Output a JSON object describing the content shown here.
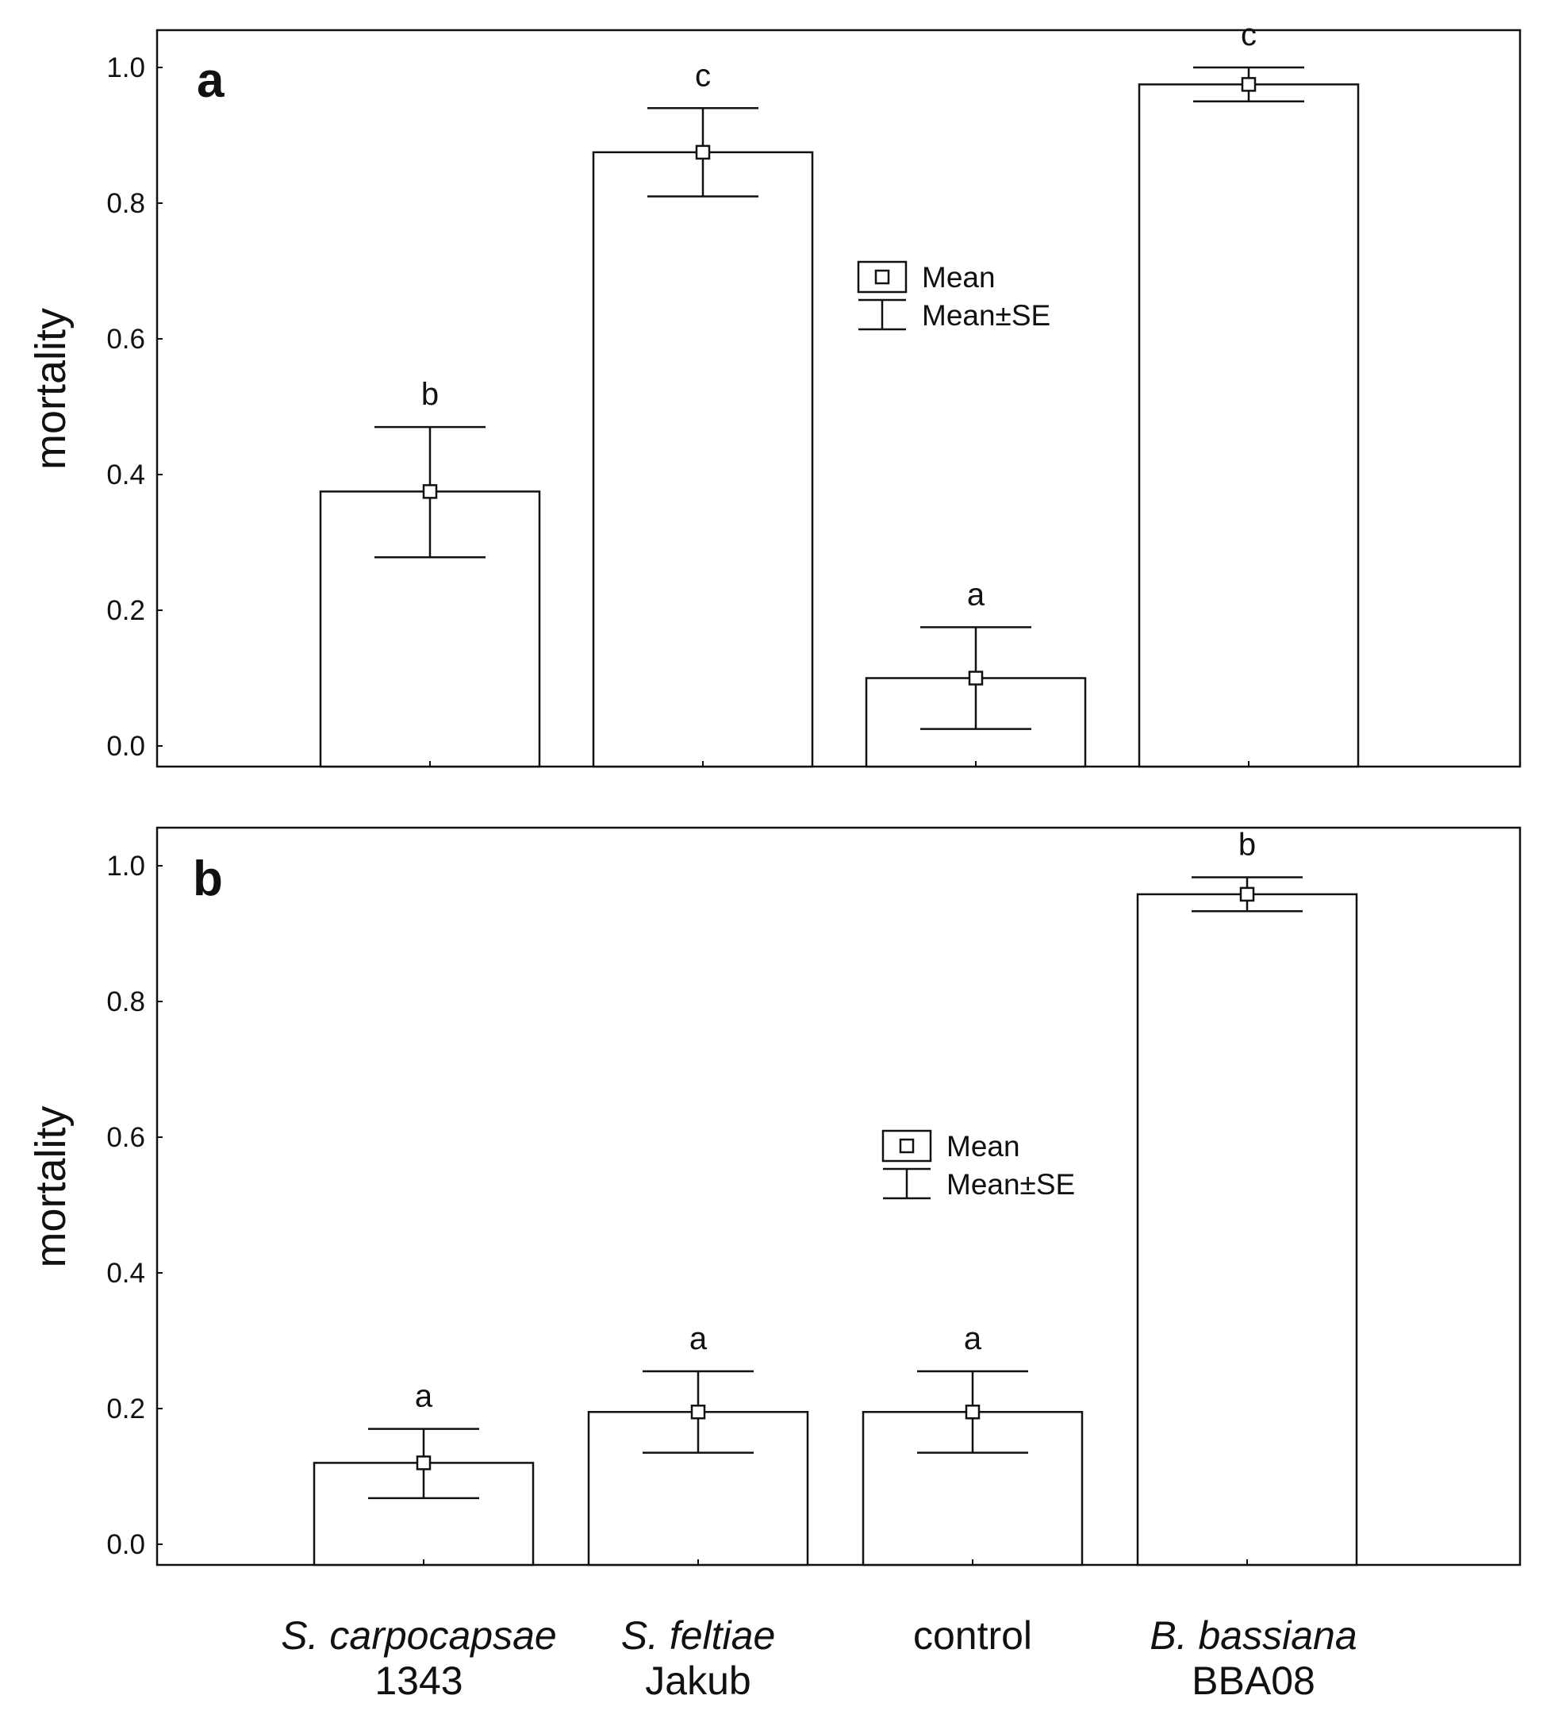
{
  "chart_data": [
    {
      "type": "bar",
      "panel_label": "a",
      "categories": [
        "S. carpocapsae 1343",
        "S. feltiae Jakub",
        "control",
        "B. bassiana BBA08"
      ],
      "values": [
        0.375,
        0.875,
        0.1,
        0.975
      ],
      "se_low": [
        0.278,
        0.81,
        0.025,
        0.95
      ],
      "se_high": [
        0.47,
        0.94,
        0.175,
        1.0
      ],
      "significance_letters": [
        "b",
        "c",
        "a",
        "c"
      ],
      "ylabel": "mortality",
      "ylim": [
        -0.03,
        1.055
      ],
      "yticks": [
        "0.0",
        "0.2",
        "0.4",
        "0.6",
        "0.8",
        "1.0"
      ],
      "legend": {
        "mean": "Mean",
        "se": "Mean±SE"
      }
    },
    {
      "type": "bar",
      "panel_label": "b",
      "categories": [
        "S. carpocapsae 1343",
        "S. feltiae Jakub",
        "control",
        "B. bassiana BBA08"
      ],
      "values": [
        0.12,
        0.195,
        0.195,
        0.958
      ],
      "se_low": [
        0.068,
        0.135,
        0.135,
        0.933
      ],
      "se_high": [
        0.17,
        0.255,
        0.255,
        0.983
      ],
      "significance_letters": [
        "a",
        "a",
        "a",
        "b"
      ],
      "ylabel": "mortality",
      "ylim": [
        -0.03,
        1.055
      ],
      "yticks": [
        "0.0",
        "0.2",
        "0.4",
        "0.6",
        "0.8",
        "1.0"
      ],
      "legend": {
        "mean": "Mean",
        "se": "Mean±SE"
      }
    }
  ],
  "x_labels": [
    {
      "line1": "S. carpocapsae",
      "line2": "1343"
    },
    {
      "line1": "S. feltiae",
      "line2": "Jakub"
    },
    {
      "line1": "control",
      "line2": ""
    },
    {
      "line1": "B. bassiana",
      "line2": "BBA08"
    }
  ]
}
